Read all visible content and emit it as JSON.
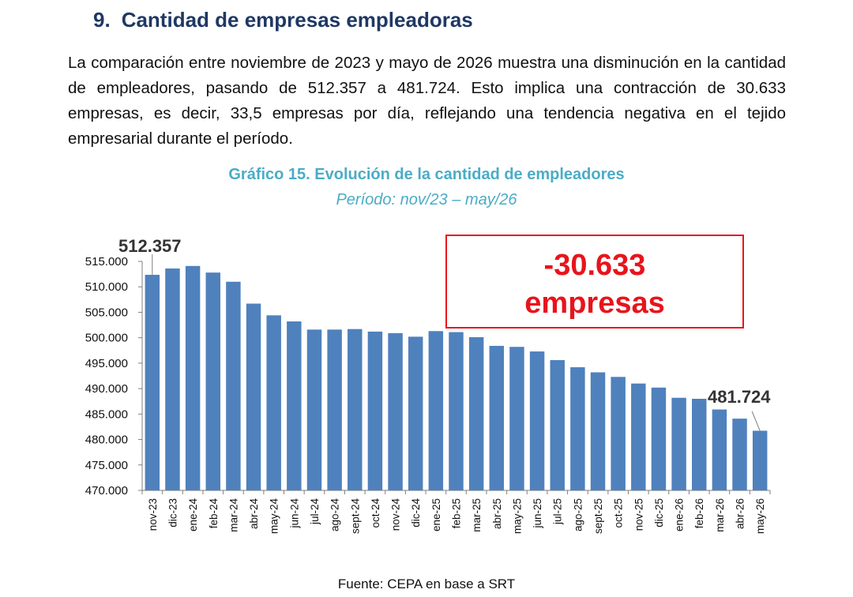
{
  "section": {
    "number": "9.",
    "title": "Cantidad de empresas empleadoras"
  },
  "intro_text": "La comparación entre noviembre de 2023 y mayo de 2026 muestra una disminución en la cantidad de empleadores, pasando de 512.357 a 481.724. Esto implica una contracción de 30.633 empresas, es decir, 33,5 empresas por día, reflejando una tendencia negativa en el tejido empresarial durante el período.",
  "chart_data": {
    "type": "bar",
    "title": "Gráfico 15. Evolución de la cantidad de empleadores",
    "subtitle": "Período: nov/23 – may/26",
    "categories": [
      "nov-23",
      "dic-23",
      "ene-24",
      "feb-24",
      "mar-24",
      "abr-24",
      "may-24",
      "jun-24",
      "jul-24",
      "ago-24",
      "sept-24",
      "oct-24",
      "nov-24",
      "dic-24",
      "ene-25",
      "feb-25",
      "mar-25",
      "abr-25",
      "may-25",
      "jun-25",
      "jul-25",
      "ago-25",
      "sept-25",
      "oct-25",
      "nov-25",
      "dic-25",
      "ene-26",
      "feb-26",
      "mar-26",
      "abr-26",
      "may-26"
    ],
    "values": [
      512357,
      513600,
      514100,
      512800,
      511000,
      506700,
      504400,
      503200,
      501600,
      501600,
      501700,
      501200,
      500900,
      500200,
      501300,
      501100,
      500100,
      498400,
      498200,
      497300,
      495600,
      494200,
      493200,
      492300,
      491000,
      490200,
      488200,
      488000,
      485900,
      484100,
      481724
    ],
    "ylim": [
      470000,
      515000
    ],
    "yticks": [
      470000,
      475000,
      480000,
      485000,
      490000,
      495000,
      500000,
      505000,
      510000,
      515000
    ],
    "ytick_labels": [
      "470.000",
      "475.000",
      "480.000",
      "485.000",
      "490.000",
      "495.000",
      "500.000",
      "505.000",
      "510.000",
      "515.000"
    ],
    "bar_color": "#4f81bd",
    "annotations": {
      "first_label": "512.357",
      "last_label": "481.724",
      "callout_line1": "-30.633",
      "callout_line2": "empresas",
      "callout_color": "#e8141c"
    },
    "grid": false
  },
  "source": "Fuente: CEPA en base a SRT"
}
